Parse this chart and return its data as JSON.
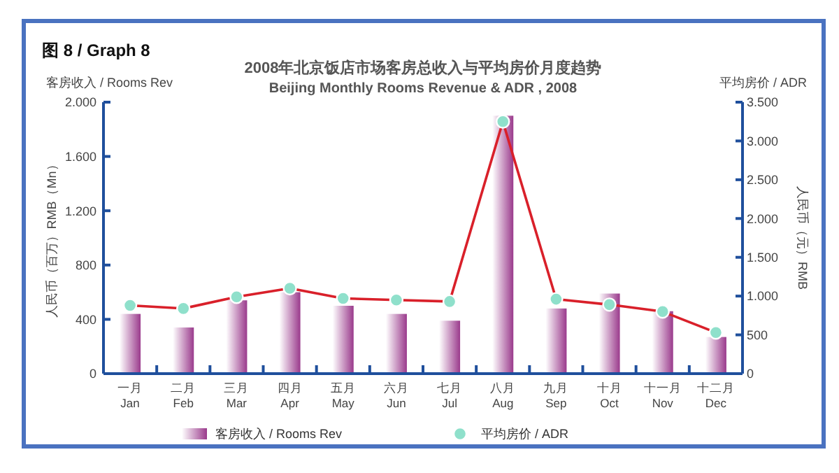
{
  "chart_data": {
    "type": "bar",
    "title": "2008年北京饭店市场客房总收入与平均房价月度趋势",
    "subtitle": "Beijing Monthly Rooms Revenue & ADR , 2008",
    "annotations": [
      "图 8 / Graph 8",
      "客房收入 / Rooms Rev",
      "平均房价 / ADR"
    ],
    "ylabel": "人民币（百万）RMB（Mn）",
    "y2label": "人民币（元）RMB",
    "categories": [
      "一月\nJan",
      "二月\nFeb",
      "三月\nMar",
      "四月\nApr",
      "五月\nMay",
      "六月\nJun",
      "七月\nJul",
      "八月\nAug",
      "九月\nSep",
      "十月\nOct",
      "十一月\nNov",
      "十二月\nDec"
    ],
    "series": [
      {
        "name": "客房收入 / Rooms Rev",
        "color": "#9a3a8c",
        "values": [
          440,
          340,
          540,
          600,
          500,
          440,
          390,
          1900,
          480,
          590,
          460,
          270
        ]
      },
      {
        "name": "平均房价 / ADR",
        "type": "line",
        "axis": "y2",
        "color": "#d9202a",
        "marker": "circle",
        "values": [
          880,
          840,
          990,
          1100,
          970,
          950,
          930,
          3250,
          960,
          890,
          800,
          530
        ]
      }
    ],
    "ylim": [
      0,
      2000
    ],
    "yticks": [
      0,
      400,
      800,
      {
        "value": 1200,
        "label": "1.200"
      },
      {
        "value": 1600,
        "label": "1.600"
      },
      {
        "value": 2000,
        "label": "2.000"
      }
    ],
    "y2lim": [
      0,
      3500
    ],
    "y2ticks": [
      0,
      500,
      {
        "value": 1000,
        "label": "1.000"
      },
      {
        "value": 1500,
        "label": "1.500"
      },
      {
        "value": 2000,
        "label": "2.000"
      },
      {
        "value": 2500,
        "label": "2.500"
      },
      {
        "value": 3000,
        "label": "3.000"
      },
      {
        "value": 3500,
        "label": "3.500"
      }
    ],
    "grid": false,
    "legend": "bottom"
  }
}
